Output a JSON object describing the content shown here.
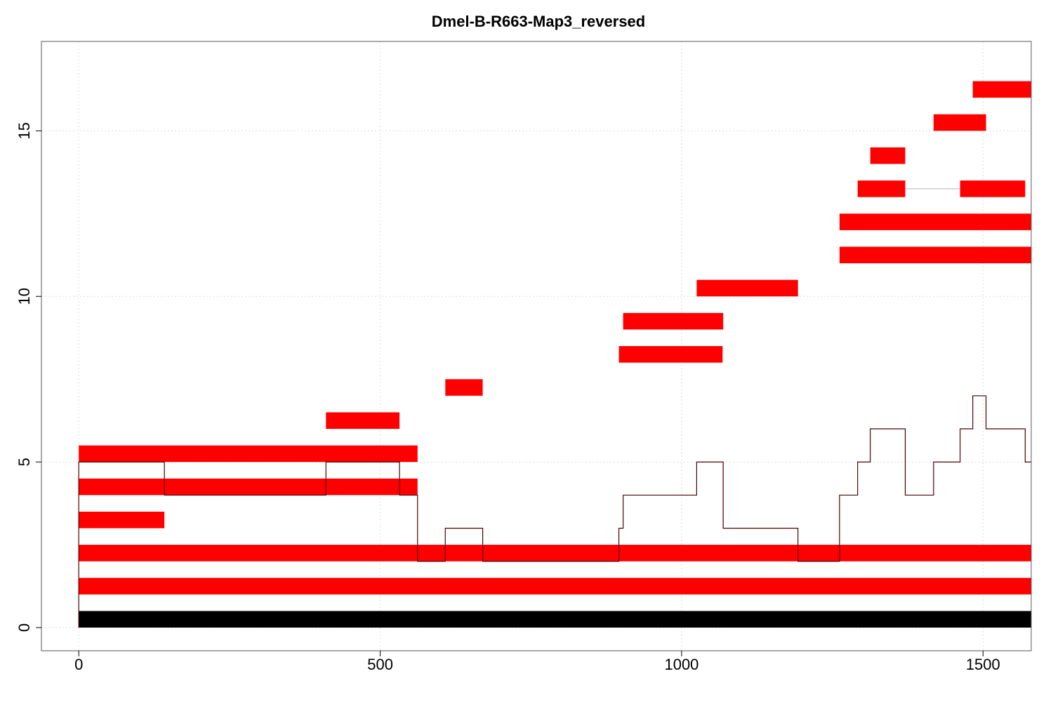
{
  "chart_data": {
    "type": "bar",
    "subtype": "horizontal-interval-alignment",
    "title": "Dmel-B-R663-Map3_reversed",
    "xlabel": "",
    "ylabel": "",
    "xlim": [
      -62,
      1580
    ],
    "ylim": [
      -0.7,
      17.7
    ],
    "x_ticks": [
      0,
      500,
      1000,
      1500
    ],
    "y_ticks": [
      0,
      5,
      10,
      15
    ],
    "grid": true,
    "colors": {
      "reference": "#000000",
      "segment": "#ff0000",
      "coverage_line": "#4a0000",
      "connector": "#cccccc",
      "grid": "#dddddd"
    },
    "reference": {
      "start": 0,
      "end": 1580,
      "y0": 0,
      "y1": 0.5
    },
    "segments": [
      {
        "row": 1,
        "start": 0,
        "end": 1580
      },
      {
        "row": 2,
        "start": 0,
        "end": 1580
      },
      {
        "row": 3,
        "start": 0,
        "end": 142
      },
      {
        "row": 4,
        "start": 0,
        "end": 562
      },
      {
        "row": 5,
        "start": 0,
        "end": 562
      },
      {
        "row": 6,
        "start": 410,
        "end": 532
      },
      {
        "row": 7,
        "start": 608,
        "end": 670
      },
      {
        "row": 8,
        "start": 896,
        "end": 1068
      },
      {
        "row": 9,
        "start": 903,
        "end": 1069
      },
      {
        "row": 10,
        "start": 1025,
        "end": 1193
      },
      {
        "row": 11,
        "start": 1262,
        "end": 1580
      },
      {
        "row": 12,
        "start": 1262,
        "end": 1580
      },
      {
        "row": 13,
        "start": 1292,
        "end": 1371
      },
      {
        "row": 13,
        "start": 1462,
        "end": 1570
      },
      {
        "row": 14,
        "start": 1313,
        "end": 1371
      },
      {
        "row": 15,
        "start": 1418,
        "end": 1505
      },
      {
        "row": 16,
        "start": 1483,
        "end": 1580
      }
    ],
    "connectors": [
      {
        "row": 13,
        "start": 1371,
        "end": 1462
      }
    ],
    "coverage": {
      "x": [
        0,
        0,
        142,
        142,
        410,
        410,
        532,
        532,
        562,
        562,
        608,
        608,
        670,
        670,
        896,
        896,
        903,
        903,
        1025,
        1025,
        1069,
        1069,
        1193,
        1193,
        1262,
        1262,
        1292,
        1292,
        1313,
        1313,
        1371,
        1371,
        1418,
        1418,
        1462,
        1462,
        1483,
        1483,
        1505,
        1505,
        1570,
        1570,
        1580
      ],
      "y": [
        0,
        5,
        5,
        4,
        4,
        5,
        5,
        4,
        4,
        2,
        2,
        3,
        3,
        2,
        2,
        3,
        3,
        4,
        4,
        5,
        5,
        3,
        3,
        2,
        2,
        4,
        4,
        5,
        5,
        6,
        6,
        4,
        4,
        5,
        5,
        6,
        6,
        7,
        7,
        6,
        6,
        5,
        5
      ]
    }
  }
}
